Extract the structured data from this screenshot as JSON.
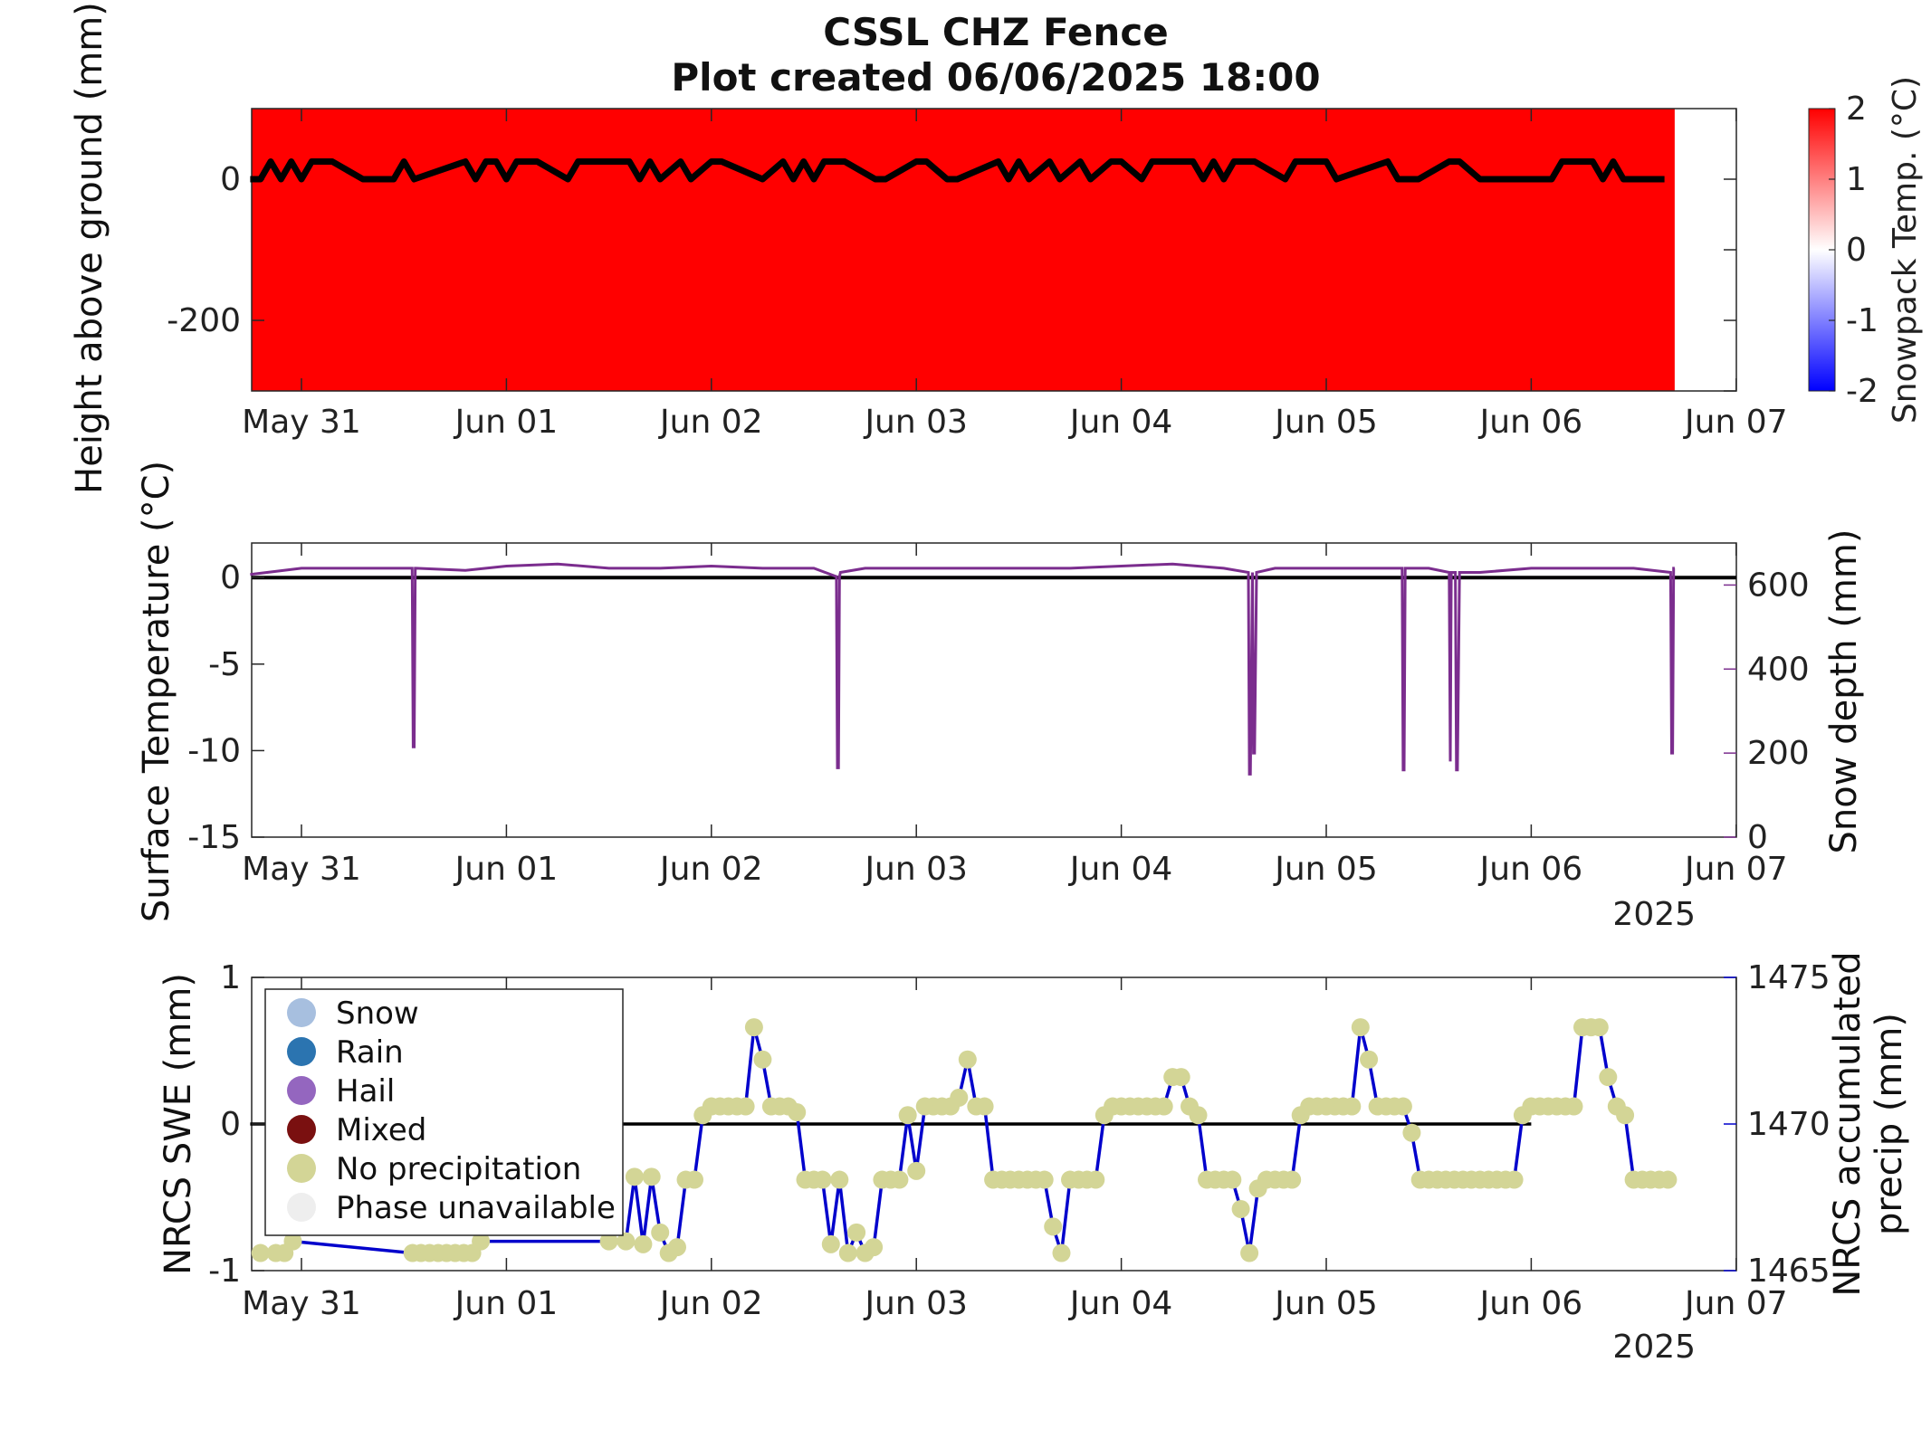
{
  "figure": {
    "title": "CSSL CHZ Fence",
    "subtitle": "Plot created 06/06/2025 18:00"
  },
  "chart_data": [
    {
      "type": "heatmap",
      "panel": "snowpack",
      "ylabel": "Height above ground (mm)",
      "yticks": [
        0,
        -200
      ],
      "ylim": [
        -300,
        100
      ],
      "x_tick_labels": [
        "May 31",
        "Jun 01",
        "Jun 02",
        "Jun 03",
        "Jun 04",
        "Jun 05",
        "Jun 06",
        "Jun 07"
      ],
      "xlim_days": [
        -0.25,
        7
      ],
      "data_end_day": 6.7,
      "fill_color": "#ff0000",
      "colorbar": {
        "label": "Snowpack Temp. (°C)",
        "ticks": [
          2,
          1,
          0,
          -1,
          -2
        ],
        "range": [
          -2,
          2
        ],
        "colors": [
          "#0000ff",
          "#ffffff",
          "#ff0000"
        ]
      },
      "height_line": {
        "color": "#000000",
        "x": [
          -0.25,
          -0.2,
          -0.15,
          -0.1,
          -0.05,
          0,
          0.05,
          0.1,
          0.15,
          0.3,
          0.35,
          0.45,
          0.5,
          0.55,
          0.8,
          0.85,
          0.9,
          0.95,
          1.0,
          1.05,
          1.1,
          1.15,
          1.3,
          1.35,
          1.6,
          1.65,
          1.7,
          1.75,
          1.85,
          1.9,
          2.0,
          2.05,
          2.25,
          2.35,
          2.4,
          2.45,
          2.5,
          2.55,
          2.6,
          2.65,
          2.8,
          2.85,
          3.0,
          3.05,
          3.15,
          3.2,
          3.4,
          3.45,
          3.5,
          3.55,
          3.65,
          3.7,
          3.8,
          3.85,
          3.95,
          4.0,
          4.1,
          4.15,
          4.35,
          4.4,
          4.45,
          4.5,
          4.55,
          4.6,
          4.65,
          4.8,
          4.85,
          5.0,
          5.05,
          5.3,
          5.35,
          5.4,
          5.45,
          5.6,
          5.65,
          5.75,
          5.8,
          6.1,
          6.15,
          6.3,
          6.35,
          6.4,
          6.45,
          6.65
        ],
        "y": [
          0,
          0,
          25,
          0,
          25,
          0,
          25,
          25,
          25,
          0,
          0,
          0,
          25,
          0,
          25,
          0,
          25,
          25,
          0,
          25,
          25,
          25,
          0,
          25,
          25,
          0,
          25,
          0,
          25,
          0,
          25,
          25,
          0,
          25,
          0,
          25,
          0,
          25,
          25,
          25,
          0,
          0,
          25,
          25,
          0,
          0,
          25,
          0,
          25,
          0,
          25,
          0,
          25,
          0,
          25,
          25,
          0,
          25,
          25,
          0,
          25,
          0,
          25,
          25,
          25,
          0,
          25,
          25,
          0,
          25,
          0,
          0,
          0,
          25,
          25,
          0,
          0,
          0,
          25,
          25,
          0,
          25,
          0,
          0
        ],
        "ylim_units": "mm"
      }
    },
    {
      "type": "line",
      "panel": "surface",
      "ylabel": "Surface Temperature (°C)",
      "y2label": "Snow depth (mm)",
      "yticks": [
        0,
        -5,
        -10,
        -15
      ],
      "ylim": [
        -15,
        2
      ],
      "y2ticks": [
        0,
        200,
        400,
        600
      ],
      "y2lim": [
        0,
        700
      ],
      "x_tick_labels": [
        "May 31",
        "Jun 01",
        "Jun 02",
        "Jun 03",
        "Jun 04",
        "Jun 05",
        "Jun 06",
        "Jun 07"
      ],
      "year_label": "2025",
      "zero_line_color": "#000000",
      "series": [
        {
          "name": "",
          "color": "#7b2d8e",
          "axis": "right",
          "x": [
            -0.25,
            0.0,
            0.25,
            0.5,
            0.54,
            0.545,
            0.55,
            0.555,
            0.56,
            0.8,
            1.0,
            1.25,
            1.5,
            1.75,
            2.0,
            2.25,
            2.5,
            2.61,
            2.615,
            2.62,
            2.625,
            2.63,
            2.75,
            3.0,
            3.25,
            3.5,
            3.75,
            4.0,
            4.25,
            4.5,
            4.62,
            4.625,
            4.63,
            4.64,
            4.645,
            4.65,
            4.66,
            4.75,
            5.0,
            5.25,
            5.37,
            5.375,
            5.38,
            5.385,
            5.39,
            5.5,
            5.6,
            5.605,
            5.61,
            5.63,
            5.635,
            5.64,
            5.65,
            5.75,
            6.0,
            6.25,
            6.5,
            6.68,
            6.685,
            6.69,
            6.695,
            6.7
          ],
          "values": [
            625,
            640,
            640,
            640,
            640,
            215,
            215,
            640,
            640,
            635,
            645,
            650,
            640,
            640,
            645,
            640,
            640,
            620,
            165,
            165,
            620,
            630,
            640,
            640,
            640,
            640,
            640,
            645,
            650,
            640,
            630,
            150,
            150,
            630,
            200,
            200,
            630,
            640,
            640,
            640,
            640,
            160,
            160,
            640,
            640,
            640,
            630,
            180,
            630,
            630,
            160,
            160,
            630,
            630,
            640,
            640,
            640,
            630,
            200,
            200,
            640,
            640
          ]
        }
      ]
    },
    {
      "type": "line",
      "panel": "nrcs",
      "ylabel": "NRCS SWE (mm)",
      "y2label": "NRCS accumulated precip (mm)",
      "yticks": [
        1,
        0,
        -1
      ],
      "ylim": [
        -1,
        1
      ],
      "y2ticks": [
        1475,
        1470,
        1465
      ],
      "y2lim": [
        1465,
        1475
      ],
      "x_tick_labels": [
        "May 31",
        "Jun 01",
        "Jun 02",
        "Jun 03",
        "Jun 04",
        "Jun 05",
        "Jun 06",
        "Jun 07"
      ],
      "year_label": "2025",
      "legend": {
        "placement": "top-left",
        "items": [
          {
            "label": "Snow",
            "color": "#a7bfdf"
          },
          {
            "label": "Rain",
            "color": "#2b74b0"
          },
          {
            "label": "Hail",
            "color": "#9466bf"
          },
          {
            "label": "Mixed",
            "color": "#7a1010"
          },
          {
            "label": "No precipitation",
            "color": "#d3d596"
          },
          {
            "label": "Phase unavailable",
            "color": "#eeeeee"
          }
        ]
      },
      "zero_line": {
        "color": "#000000",
        "x": [
          -0.25,
          6.0
        ]
      },
      "series": [
        {
          "name": "",
          "color": "#0000cc",
          "axis": "right",
          "marker_color": "#d3d596",
          "x": [
            -0.2,
            -0.125,
            -0.083,
            -0.042,
            0.542,
            0.583,
            0.625,
            0.667,
            0.708,
            0.75,
            0.792,
            0.833,
            0.875,
            1.5,
            1.583,
            1.625,
            1.667,
            1.708,
            1.75,
            1.792,
            1.833,
            1.875,
            1.917,
            1.958,
            2.0,
            2.042,
            2.083,
            2.125,
            2.167,
            2.208,
            2.25,
            2.292,
            2.333,
            2.375,
            2.417,
            2.458,
            2.5,
            2.542,
            2.583,
            2.625,
            2.667,
            2.708,
            2.75,
            2.792,
            2.833,
            2.875,
            2.917,
            2.958,
            3.0,
            3.042,
            3.083,
            3.125,
            3.167,
            3.208,
            3.25,
            3.292,
            3.333,
            3.375,
            3.417,
            3.458,
            3.5,
            3.542,
            3.583,
            3.625,
            3.667,
            3.708,
            3.75,
            3.792,
            3.833,
            3.875,
            3.917,
            3.958,
            4.0,
            4.042,
            4.083,
            4.125,
            4.167,
            4.208,
            4.25,
            4.292,
            4.333,
            4.375,
            4.417,
            4.458,
            4.5,
            4.542,
            4.583,
            4.625,
            4.667,
            4.708,
            4.75,
            4.792,
            4.833,
            4.875,
            4.917,
            4.958,
            5.0,
            5.042,
            5.083,
            5.125,
            5.167,
            5.208,
            5.25,
            5.292,
            5.333,
            5.375,
            5.417,
            5.458,
            5.5,
            5.542,
            5.583,
            5.625,
            5.667,
            5.708,
            5.75,
            5.792,
            5.833,
            5.875,
            5.917,
            5.958,
            6.0,
            6.042,
            6.083,
            6.125,
            6.167,
            6.208,
            6.25,
            6.292,
            6.333,
            6.375,
            6.417,
            6.458,
            6.5,
            6.542,
            6.583,
            6.625,
            6.667
          ],
          "values": [
            1465.6,
            1465.6,
            1465.6,
            1466.0,
            1465.6,
            1465.6,
            1465.6,
            1465.6,
            1465.6,
            1465.6,
            1465.6,
            1465.6,
            1466.0,
            1466.0,
            1466.0,
            1468.2,
            1465.9,
            1468.2,
            1466.3,
            1465.6,
            1465.8,
            1468.1,
            1468.1,
            1470.3,
            1470.6,
            1470.6,
            1470.6,
            1470.6,
            1470.6,
            1473.3,
            1472.2,
            1470.6,
            1470.6,
            1470.6,
            1470.4,
            1468.1,
            1468.1,
            1468.1,
            1465.9,
            1468.1,
            1465.6,
            1466.3,
            1465.6,
            1465.8,
            1468.1,
            1468.1,
            1468.1,
            1470.3,
            1468.4,
            1470.6,
            1470.6,
            1470.6,
            1470.6,
            1470.9,
            1472.2,
            1470.6,
            1470.6,
            1468.1,
            1468.1,
            1468.1,
            1468.1,
            1468.1,
            1468.1,
            1468.1,
            1466.5,
            1465.6,
            1468.1,
            1468.1,
            1468.1,
            1468.1,
            1470.3,
            1470.6,
            1470.6,
            1470.6,
            1470.6,
            1470.6,
            1470.6,
            1470.6,
            1471.6,
            1471.6,
            1470.6,
            1470.3,
            1468.1,
            1468.1,
            1468.1,
            1468.1,
            1467.1,
            1465.6,
            1467.8,
            1468.1,
            1468.1,
            1468.1,
            1468.1,
            1470.3,
            1470.6,
            1470.6,
            1470.6,
            1470.6,
            1470.6,
            1470.6,
            1473.3,
            1472.2,
            1470.6,
            1470.6,
            1470.6,
            1470.6,
            1469.7,
            1468.1,
            1468.1,
            1468.1,
            1468.1,
            1468.1,
            1468.1,
            1468.1,
            1468.1,
            1468.1,
            1468.1,
            1468.1,
            1468.1,
            1470.3,
            1470.6,
            1470.6,
            1470.6,
            1470.6,
            1470.6,
            1470.6,
            1473.3,
            1473.3,
            1473.3,
            1471.6,
            1470.6,
            1470.3,
            1468.1,
            1468.1,
            1468.1,
            1468.1,
            1468.1
          ]
        }
      ]
    }
  ]
}
